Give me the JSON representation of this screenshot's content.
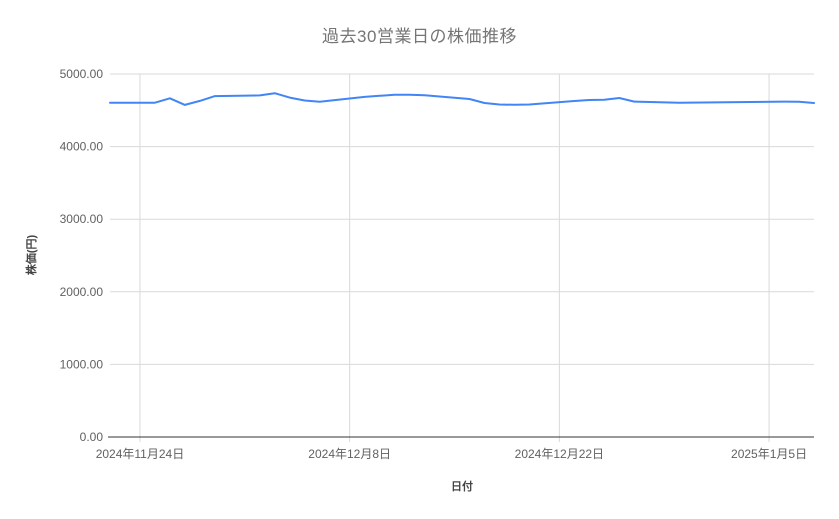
{
  "chart_data": {
    "type": "line",
    "title": "過去30営業日の株価推移",
    "xlabel": "日付",
    "ylabel": "株価(円)",
    "ylim": [
      0,
      5000
    ],
    "x_domain_days": [
      0,
      47
    ],
    "grid": true,
    "legend": "none",
    "line_color": "#4285f4",
    "y_ticks": [
      {
        "value": 0,
        "label": "0.00"
      },
      {
        "value": 1000,
        "label": "1000.00"
      },
      {
        "value": 2000,
        "label": "2000.00"
      },
      {
        "value": 3000,
        "label": "3000.00"
      },
      {
        "value": 4000,
        "label": "4000.00"
      },
      {
        "value": 5000,
        "label": "5000.00"
      }
    ],
    "x_ticks": [
      {
        "day": 2,
        "label": "2024年11月24日"
      },
      {
        "day": 16,
        "label": "2024年12月8日"
      },
      {
        "day": 30,
        "label": "2024年12月22日"
      },
      {
        "day": 44,
        "label": "2025年1月5日"
      }
    ],
    "series": [
      {
        "points": [
          {
            "date": "2024-11-22",
            "day": 0,
            "value": 4605
          },
          {
            "date": "2024-11-25",
            "day": 3,
            "value": 4605
          },
          {
            "date": "2024-11-26",
            "day": 4,
            "value": 4665
          },
          {
            "date": "2024-11-27",
            "day": 5,
            "value": 4575
          },
          {
            "date": "2024-11-28",
            "day": 6,
            "value": 4630
          },
          {
            "date": "2024-11-29",
            "day": 7,
            "value": 4695
          },
          {
            "date": "2024-12-02",
            "day": 10,
            "value": 4705
          },
          {
            "date": "2024-12-03",
            "day": 11,
            "value": 4735
          },
          {
            "date": "2024-12-04",
            "day": 12,
            "value": 4675
          },
          {
            "date": "2024-12-05",
            "day": 13,
            "value": 4635
          },
          {
            "date": "2024-12-06",
            "day": 14,
            "value": 4618
          },
          {
            "date": "2024-12-09",
            "day": 17,
            "value": 4685
          },
          {
            "date": "2024-12-10",
            "day": 18,
            "value": 4700
          },
          {
            "date": "2024-12-11",
            "day": 19,
            "value": 4713
          },
          {
            "date": "2024-12-12",
            "day": 20,
            "value": 4715
          },
          {
            "date": "2024-12-13",
            "day": 21,
            "value": 4708
          },
          {
            "date": "2024-12-16",
            "day": 24,
            "value": 4655
          },
          {
            "date": "2024-12-17",
            "day": 25,
            "value": 4600
          },
          {
            "date": "2024-12-18",
            "day": 26,
            "value": 4580
          },
          {
            "date": "2024-12-19",
            "day": 27,
            "value": 4576
          },
          {
            "date": "2024-12-20",
            "day": 28,
            "value": 4580
          },
          {
            "date": "2024-12-23",
            "day": 31,
            "value": 4628
          },
          {
            "date": "2024-12-24",
            "day": 32,
            "value": 4642
          },
          {
            "date": "2024-12-25",
            "day": 33,
            "value": 4645
          },
          {
            "date": "2024-12-26",
            "day": 34,
            "value": 4670
          },
          {
            "date": "2024-12-27",
            "day": 35,
            "value": 4620
          },
          {
            "date": "2024-12-30",
            "day": 38,
            "value": 4605
          },
          {
            "date": "2025-01-06",
            "day": 45,
            "value": 4620
          },
          {
            "date": "2025-01-07",
            "day": 46,
            "value": 4618
          },
          {
            "date": "2025-01-08",
            "day": 47,
            "value": 4600
          }
        ]
      }
    ]
  }
}
